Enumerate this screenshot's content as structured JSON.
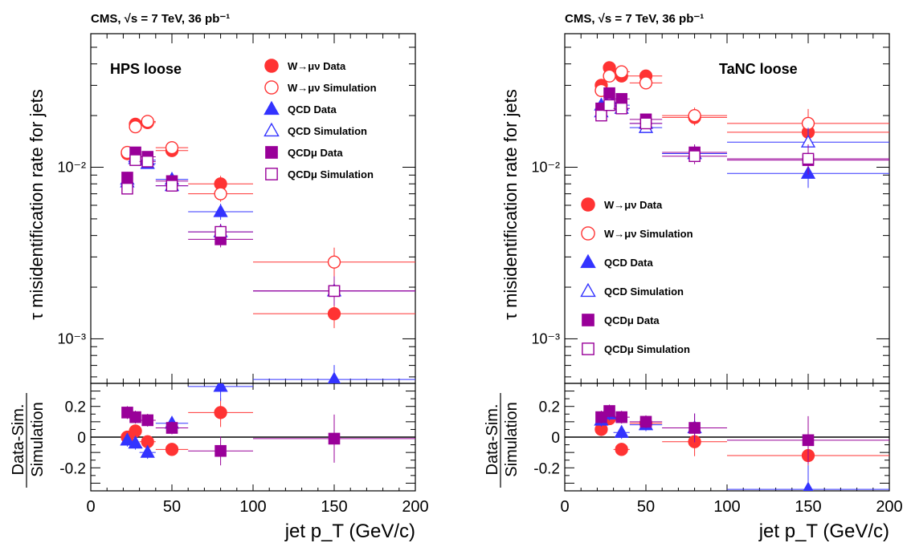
{
  "figure": {
    "header_text": "CMS, √s = 7 TeV, 36 pb⁻¹",
    "xlabel": "jet p_T (GeV/c)",
    "ylabel_main": "τ misidentification rate for jets",
    "ylabel_ratio_num": "Data-Sim.",
    "ylabel_ratio_den": "Simulation"
  },
  "chart_data": [
    {
      "type": "scatter",
      "panel": "HPS loose",
      "title": "HPS loose",
      "xlim": [
        0,
        200
      ],
      "ylim_main": [
        0.00055,
        0.06
      ],
      "yscale_main": "log",
      "ylim_ratio": [
        -0.35,
        0.35
      ],
      "xticks": [
        0,
        50,
        100,
        150,
        200
      ],
      "yticks_main": [
        "10⁻³",
        "10⁻²"
      ],
      "yticks_ratio": [
        "0.2",
        "0",
        "-0.2"
      ],
      "legend_position": "top-right",
      "series": [
        {
          "name": "W→μν Data",
          "color": "#ff3333",
          "marker": "circle-filled",
          "points": [
            {
              "x": 22.5,
              "y": 0.012,
              "xerr": 2.5
            },
            {
              "x": 27.5,
              "y": 0.0178,
              "xerr": 2.5
            },
            {
              "x": 35,
              "y": 0.0182,
              "xerr": 5
            },
            {
              "x": 50,
              "y": 0.0125,
              "xerr": 10
            },
            {
              "x": 80,
              "y": 0.008,
              "xerr": 20
            },
            {
              "x": 150,
              "y": 0.0014,
              "xerr": 50
            }
          ]
        },
        {
          "name": "W→μν Simulation",
          "color": "#ff3333",
          "marker": "circle-open",
          "points": [
            {
              "x": 22.5,
              "y": 0.0122,
              "xerr": 2.5
            },
            {
              "x": 27.5,
              "y": 0.0172,
              "xerr": 2.5
            },
            {
              "x": 35,
              "y": 0.0185,
              "xerr": 5
            },
            {
              "x": 50,
              "y": 0.013,
              "xerr": 10
            },
            {
              "x": 80,
              "y": 0.007,
              "xerr": 20
            },
            {
              "x": 150,
              "y": 0.0028,
              "xerr": 50
            }
          ]
        },
        {
          "name": "QCD Data",
          "color": "#3333ff",
          "marker": "triangle-filled",
          "points": [
            {
              "x": 22.5,
              "y": 0.0085,
              "xerr": 2.5
            },
            {
              "x": 27.5,
              "y": 0.0115,
              "xerr": 2.5
            },
            {
              "x": 35,
              "y": 0.0105,
              "xerr": 5
            },
            {
              "x": 50,
              "y": 0.0085,
              "xerr": 10
            },
            {
              "x": 80,
              "y": 0.0055,
              "xerr": 20
            },
            {
              "x": 150,
              "y": 0.00058,
              "xerr": 50
            }
          ]
        },
        {
          "name": "QCD Simulation",
          "color": "#3333ff",
          "marker": "triangle-open",
          "points": [
            {
              "x": 22.5,
              "y": 0.0082,
              "xerr": 2.5
            },
            {
              "x": 27.5,
              "y": 0.0112,
              "xerr": 2.5
            },
            {
              "x": 35,
              "y": 0.011,
              "xerr": 5
            },
            {
              "x": 50,
              "y": 0.0078,
              "xerr": 10
            },
            {
              "x": 80,
              "y": 0.0042,
              "xerr": 20
            },
            {
              "x": 150,
              "y": 0.0019,
              "xerr": 50
            }
          ]
        },
        {
          "name": "QCDμ Data",
          "color": "#990099",
          "marker": "square-filled",
          "points": [
            {
              "x": 22.5,
              "y": 0.0087,
              "xerr": 2.5
            },
            {
              "x": 27.5,
              "y": 0.0122,
              "xerr": 2.5
            },
            {
              "x": 35,
              "y": 0.0115,
              "xerr": 5
            },
            {
              "x": 50,
              "y": 0.0083,
              "xerr": 10
            },
            {
              "x": 80,
              "y": 0.0038,
              "xerr": 20
            },
            {
              "x": 150,
              "y": 0.0019,
              "xerr": 50
            }
          ]
        },
        {
          "name": "QCDμ Simulation",
          "color": "#990099",
          "marker": "square-open",
          "points": [
            {
              "x": 22.5,
              "y": 0.0075,
              "xerr": 2.5
            },
            {
              "x": 27.5,
              "y": 0.011,
              "xerr": 2.5
            },
            {
              "x": 35,
              "y": 0.0108,
              "xerr": 5
            },
            {
              "x": 50,
              "y": 0.0078,
              "xerr": 10
            },
            {
              "x": 80,
              "y": 0.0042,
              "xerr": 20
            },
            {
              "x": 150,
              "y": 0.0019,
              "xerr": 50
            }
          ]
        }
      ],
      "ratio_series": [
        {
          "color": "#ff3333",
          "marker": "circle-filled",
          "points": [
            {
              "x": 22.5,
              "y": 0.0,
              "xerr": 2.5
            },
            {
              "x": 27.5,
              "y": 0.04,
              "xerr": 2.5
            },
            {
              "x": 35,
              "y": -0.03,
              "xerr": 5
            },
            {
              "x": 50,
              "y": -0.08,
              "xerr": 10
            },
            {
              "x": 80,
              "y": 0.16,
              "xerr": 20
            }
          ]
        },
        {
          "color": "#3333ff",
          "marker": "triangle-filled",
          "points": [
            {
              "x": 22.5,
              "y": -0.02,
              "xerr": 2.5
            },
            {
              "x": 27.5,
              "y": -0.04,
              "xerr": 2.5
            },
            {
              "x": 35,
              "y": -0.1,
              "xerr": 5
            },
            {
              "x": 50,
              "y": 0.09,
              "xerr": 10
            },
            {
              "x": 80,
              "y": 0.33,
              "xerr": 20
            }
          ]
        },
        {
          "color": "#990099",
          "marker": "square-filled",
          "points": [
            {
              "x": 22.5,
              "y": 0.16,
              "xerr": 2.5
            },
            {
              "x": 27.5,
              "y": 0.13,
              "xerr": 2.5
            },
            {
              "x": 35,
              "y": 0.11,
              "xerr": 5
            },
            {
              "x": 50,
              "y": 0.06,
              "xerr": 10
            },
            {
              "x": 80,
              "y": -0.09,
              "xerr": 20
            },
            {
              "x": 150,
              "y": -0.01,
              "xerr": 50
            }
          ]
        }
      ]
    },
    {
      "type": "scatter",
      "panel": "TaNC loose",
      "title": "TaNC loose",
      "xlim": [
        0,
        200
      ],
      "ylim_main": [
        0.00055,
        0.06
      ],
      "yscale_main": "log",
      "ylim_ratio": [
        -0.35,
        0.35
      ],
      "xticks": [
        0,
        50,
        100,
        150,
        200
      ],
      "yticks_main": [
        "10⁻³",
        "10⁻²"
      ],
      "yticks_ratio": [
        "0.2",
        "0",
        "-0.2"
      ],
      "legend_position": "center-left",
      "series": [
        {
          "name": "W→μν Data",
          "color": "#ff3333",
          "marker": "circle-filled",
          "points": [
            {
              "x": 22.5,
              "y": 0.03,
              "xerr": 2.5
            },
            {
              "x": 27.5,
              "y": 0.038,
              "xerr": 2.5
            },
            {
              "x": 35,
              "y": 0.034,
              "xerr": 5
            },
            {
              "x": 50,
              "y": 0.034,
              "xerr": 10
            },
            {
              "x": 80,
              "y": 0.0195,
              "xerr": 20
            },
            {
              "x": 150,
              "y": 0.016,
              "xerr": 50
            }
          ]
        },
        {
          "name": "W→μν Simulation",
          "color": "#ff3333",
          "marker": "circle-open",
          "points": [
            {
              "x": 22.5,
              "y": 0.028,
              "xerr": 2.5
            },
            {
              "x": 27.5,
              "y": 0.034,
              "xerr": 2.5
            },
            {
              "x": 35,
              "y": 0.036,
              "xerr": 5
            },
            {
              "x": 50,
              "y": 0.031,
              "xerr": 10
            },
            {
              "x": 80,
              "y": 0.02,
              "xerr": 20
            },
            {
              "x": 150,
              "y": 0.018,
              "xerr": 50
            }
          ]
        },
        {
          "name": "QCD Data",
          "color": "#3333ff",
          "marker": "triangle-filled",
          "points": [
            {
              "x": 22.5,
              "y": 0.023,
              "xerr": 2.5
            },
            {
              "x": 27.5,
              "y": 0.025,
              "xerr": 2.5
            },
            {
              "x": 35,
              "y": 0.023,
              "xerr": 5
            },
            {
              "x": 50,
              "y": 0.018,
              "xerr": 10
            },
            {
              "x": 80,
              "y": 0.012,
              "xerr": 20
            },
            {
              "x": 150,
              "y": 0.0092,
              "xerr": 50
            }
          ]
        },
        {
          "name": "QCD Simulation",
          "color": "#3333ff",
          "marker": "triangle-open",
          "points": [
            {
              "x": 22.5,
              "y": 0.021,
              "xerr": 2.5
            },
            {
              "x": 27.5,
              "y": 0.024,
              "xerr": 2.5
            },
            {
              "x": 35,
              "y": 0.022,
              "xerr": 5
            },
            {
              "x": 50,
              "y": 0.017,
              "xerr": 10
            },
            {
              "x": 80,
              "y": 0.012,
              "xerr": 20
            },
            {
              "x": 150,
              "y": 0.014,
              "xerr": 50
            }
          ]
        },
        {
          "name": "QCDμ Data",
          "color": "#990099",
          "marker": "square-filled",
          "points": [
            {
              "x": 22.5,
              "y": 0.022,
              "xerr": 2.5
            },
            {
              "x": 27.5,
              "y": 0.027,
              "xerr": 2.5
            },
            {
              "x": 35,
              "y": 0.025,
              "xerr": 5
            },
            {
              "x": 50,
              "y": 0.019,
              "xerr": 10
            },
            {
              "x": 80,
              "y": 0.0122,
              "xerr": 20
            },
            {
              "x": 150,
              "y": 0.011,
              "xerr": 50
            }
          ]
        },
        {
          "name": "QCDμ Simulation",
          "color": "#990099",
          "marker": "square-open",
          "points": [
            {
              "x": 22.5,
              "y": 0.02,
              "xerr": 2.5
            },
            {
              "x": 27.5,
              "y": 0.023,
              "xerr": 2.5
            },
            {
              "x": 35,
              "y": 0.022,
              "xerr": 5
            },
            {
              "x": 50,
              "y": 0.018,
              "xerr": 10
            },
            {
              "x": 80,
              "y": 0.0116,
              "xerr": 20
            },
            {
              "x": 150,
              "y": 0.0112,
              "xerr": 50
            }
          ]
        }
      ],
      "ratio_series": [
        {
          "color": "#ff3333",
          "marker": "circle-filled",
          "points": [
            {
              "x": 22.5,
              "y": 0.05,
              "xerr": 2.5
            },
            {
              "x": 27.5,
              "y": 0.12,
              "xerr": 2.5
            },
            {
              "x": 35,
              "y": -0.08,
              "xerr": 5
            },
            {
              "x": 50,
              "y": 0.09,
              "xerr": 10
            },
            {
              "x": 80,
              "y": -0.03,
              "xerr": 20
            },
            {
              "x": 150,
              "y": -0.12,
              "xerr": 50
            }
          ]
        },
        {
          "color": "#3333ff",
          "marker": "triangle-filled",
          "points": [
            {
              "x": 22.5,
              "y": 0.11,
              "xerr": 2.5
            },
            {
              "x": 27.5,
              "y": 0.15,
              "xerr": 2.5
            },
            {
              "x": 35,
              "y": 0.03,
              "xerr": 5
            },
            {
              "x": 50,
              "y": 0.08,
              "xerr": 10
            },
            {
              "x": 80,
              "y": 0.06,
              "xerr": 20
            },
            {
              "x": 150,
              "y": -0.34,
              "xerr": 50
            }
          ]
        },
        {
          "color": "#990099",
          "marker": "square-filled",
          "points": [
            {
              "x": 22.5,
              "y": 0.13,
              "xerr": 2.5
            },
            {
              "x": 27.5,
              "y": 0.17,
              "xerr": 2.5
            },
            {
              "x": 35,
              "y": 0.13,
              "xerr": 5
            },
            {
              "x": 50,
              "y": 0.1,
              "xerr": 10
            },
            {
              "x": 80,
              "y": 0.06,
              "xerr": 20
            },
            {
              "x": 150,
              "y": -0.02,
              "xerr": 50
            }
          ]
        }
      ]
    }
  ]
}
